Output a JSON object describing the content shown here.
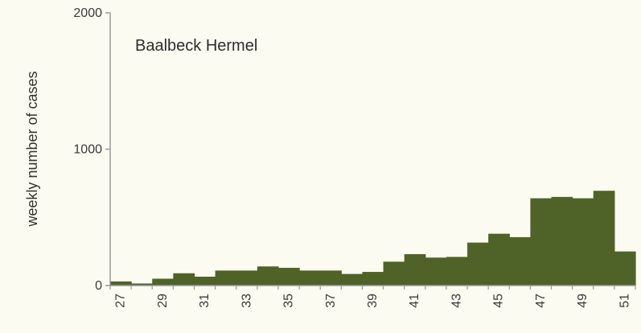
{
  "chart_data": {
    "type": "bar",
    "title": "Baalbeck Hermel",
    "xlabel": "",
    "ylabel": "weekly number of cases",
    "ylim": [
      0,
      2000
    ],
    "yticks": [
      "0",
      "1000",
      "2000"
    ],
    "x_tick_labels": [
      "27",
      "29",
      "31",
      "33",
      "35",
      "37",
      "39",
      "41",
      "43",
      "45",
      "47",
      "49",
      "51"
    ],
    "categories": [
      "27",
      "28",
      "29",
      "30",
      "31",
      "32",
      "33",
      "34",
      "35",
      "36",
      "37",
      "38",
      "39",
      "40",
      "41",
      "42",
      "43",
      "44",
      "45",
      "46",
      "47",
      "48",
      "49",
      "50",
      "51"
    ],
    "values": [
      30,
      15,
      50,
      90,
      65,
      110,
      110,
      140,
      130,
      110,
      110,
      85,
      100,
      175,
      230,
      205,
      210,
      315,
      380,
      355,
      640,
      650,
      640,
      695,
      250
    ],
    "bar_color": "#4f6228",
    "background": "#fbfbf2",
    "grid": false,
    "legend": "none"
  }
}
